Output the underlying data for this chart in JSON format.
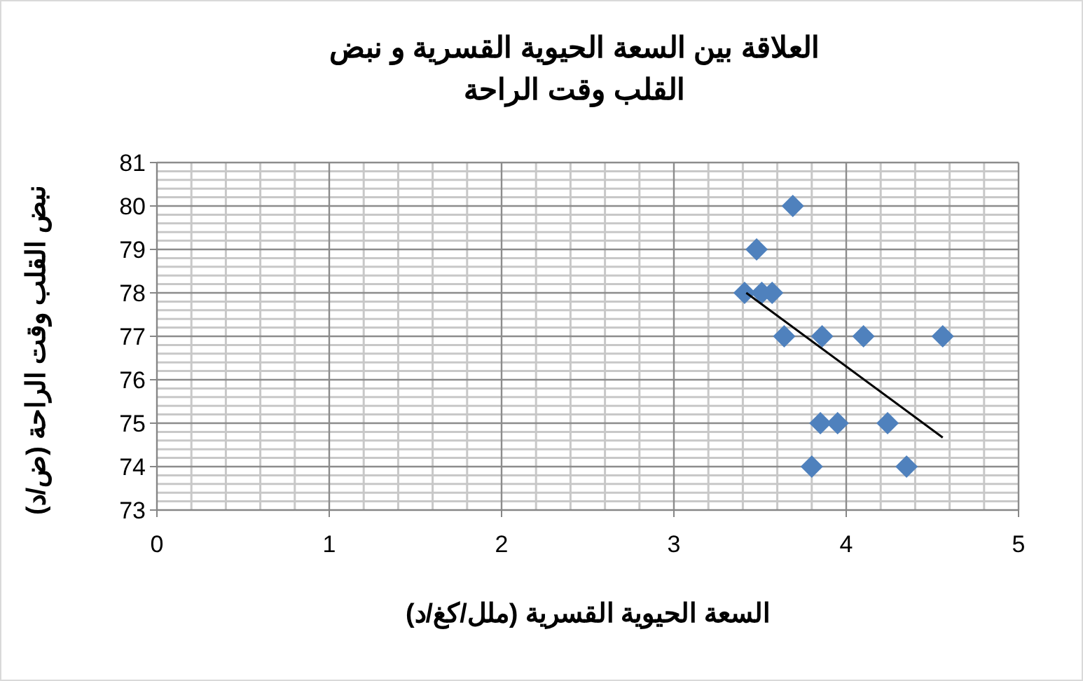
{
  "chart_data": {
    "type": "scatter",
    "title": "العلاقة بين السعة الحيوية القسرية و نبض القلب وقت الراحة",
    "xlabel": "السعة الحيوية القسرية (ملل/كغ/د)",
    "ylabel": "نبض القلب وقت الراحة (ض/د)",
    "series": [
      {
        "color": "#4f81bd",
        "marker": "diamond",
        "x": [
          3.69,
          3.48,
          3.41,
          3.51,
          3.57,
          3.64,
          3.86,
          4.1,
          4.56,
          3.85,
          3.95,
          4.24,
          3.8,
          4.35
        ],
        "values": [
          80,
          79,
          78,
          78,
          78,
          77,
          77,
          77,
          77,
          75,
          75,
          75,
          74,
          74
        ]
      },
      {
        "type": "line",
        "color": "#000000",
        "marker": "none",
        "x": [
          3.42,
          4.56
        ],
        "values": [
          78,
          74.67
        ]
      }
    ],
    "xlim": [
      0,
      5
    ],
    "xticks": [
      0,
      1,
      2,
      3,
      4,
      5
    ],
    "ylim": [
      73,
      81
    ],
    "yticks": [
      73,
      74,
      75,
      76,
      77,
      78,
      79,
      80,
      81
    ],
    "grid": true
  }
}
